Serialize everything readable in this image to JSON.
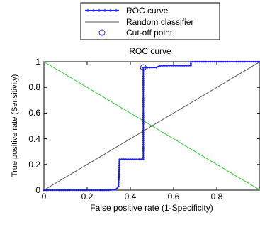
{
  "chart_data": {
    "type": "line",
    "title": "ROC curve",
    "xlabel": "False positive rate (1-Specificity)",
    "ylabel": "True positive rate (Sensitivity)",
    "xlim": [
      0,
      1
    ],
    "ylim": [
      0,
      1
    ],
    "xticks": [
      "0",
      "0.2",
      "0.4",
      "0.6",
      "0.8"
    ],
    "yticks": [
      "0",
      "0.2",
      "0.4",
      "0.6",
      "0.8",
      "1"
    ],
    "legend_position": "top",
    "legend": {
      "roc": "ROC curve",
      "random": "Random classifier",
      "cutoff": "Cut-off point"
    },
    "colors": {
      "roc": "#1a1aff",
      "random": "#555555",
      "sens_spec_cross": "#33cc33",
      "cutoff": "#1a1aff"
    },
    "series": [
      {
        "name": "ROC curve",
        "x": [
          0,
          0.05,
          0.1,
          0.15,
          0.2,
          0.25,
          0.3,
          0.33,
          0.34,
          0.345,
          0.35,
          0.36,
          0.4,
          0.44,
          0.46,
          0.46,
          0.46,
          0.46,
          0.46,
          0.47,
          0.5,
          0.52,
          0.54,
          0.6,
          0.65,
          0.68,
          0.68,
          0.75,
          0.85,
          0.95,
          1.0
        ],
        "y": [
          0,
          0,
          0,
          0,
          0,
          0,
          0,
          0.005,
          0.015,
          0.03,
          0.24,
          0.24,
          0.24,
          0.24,
          0.24,
          0.5,
          0.75,
          0.92,
          0.955,
          0.955,
          0.955,
          0.955,
          0.97,
          0.97,
          0.97,
          0.97,
          1.0,
          1.0,
          1.0,
          1.0,
          1.0
        ]
      },
      {
        "name": "Random classifier",
        "x": [
          0,
          1
        ],
        "y": [
          0,
          1
        ]
      },
      {
        "x": [
          0,
          1
        ],
        "y": [
          1,
          0
        ]
      }
    ],
    "cutoff_point": {
      "x": 0.46,
      "y": 0.955
    }
  }
}
